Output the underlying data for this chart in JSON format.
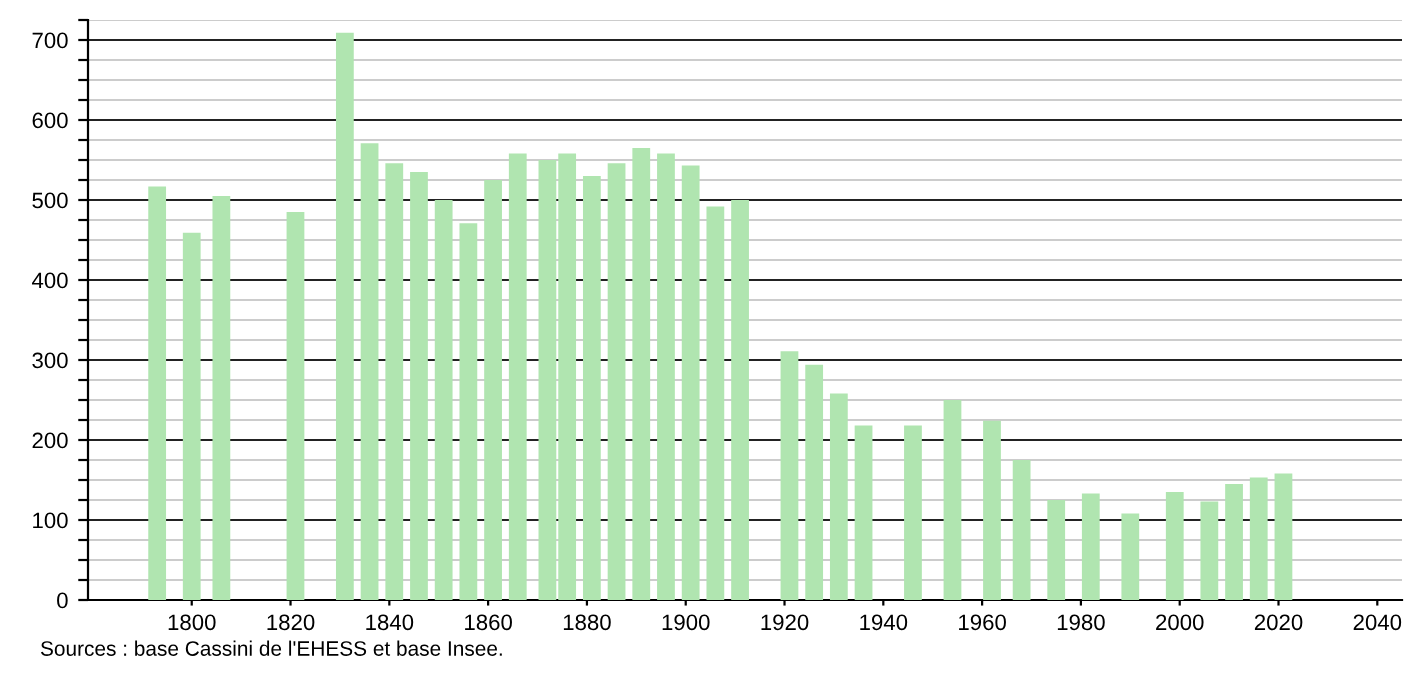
{
  "chart_data": {
    "type": "bar",
    "x": [
      1793,
      1800,
      1806,
      1821,
      1831,
      1836,
      1841,
      1846,
      1851,
      1856,
      1861,
      1866,
      1872,
      1876,
      1881,
      1886,
      1891,
      1896,
      1901,
      1906,
      1911,
      1921,
      1926,
      1931,
      1936,
      1946,
      1954,
      1962,
      1968,
      1975,
      1982,
      1990,
      1999,
      2006,
      2011,
      2016,
      2021
    ],
    "values": [
      517,
      459,
      505,
      485,
      709,
      571,
      546,
      535,
      500,
      471,
      525,
      558,
      550,
      558,
      530,
      546,
      565,
      558,
      543,
      492,
      500,
      311,
      294,
      258,
      218,
      218,
      250,
      224,
      175,
      125,
      133,
      108,
      135,
      123,
      145,
      153,
      158
    ],
    "color": "#b0e5b0",
    "xlim": [
      1779,
      2045
    ],
    "xticks": [
      1800,
      1820,
      1840,
      1860,
      1880,
      1900,
      1920,
      1940,
      1960,
      1980,
      2000,
      2020,
      2040
    ],
    "ylim": [
      0,
      725
    ],
    "yticks": [
      0,
      {
        "value": 25,
        "label": null
      },
      {
        "value": 50,
        "label": null
      },
      {
        "value": 75,
        "label": null
      },
      100,
      {
        "value": 125,
        "label": null
      },
      {
        "value": 150,
        "label": null
      },
      {
        "value": 175,
        "label": null
      },
      200,
      {
        "value": 225,
        "label": null
      },
      {
        "value": 250,
        "label": null
      },
      {
        "value": 275,
        "label": null
      },
      300,
      {
        "value": 325,
        "label": null
      },
      {
        "value": 350,
        "label": null
      },
      {
        "value": 375,
        "label": null
      },
      400,
      {
        "value": 425,
        "label": null
      },
      {
        "value": 450,
        "label": null
      },
      {
        "value": 475,
        "label": null
      },
      500,
      {
        "value": 525,
        "label": null
      },
      {
        "value": 550,
        "label": null
      },
      {
        "value": 575,
        "label": null
      },
      600,
      {
        "value": 625,
        "label": null
      },
      {
        "value": 650,
        "label": null
      },
      {
        "value": 675,
        "label": null
      },
      700,
      {
        "value": 725,
        "label": null
      }
    ],
    "grid": "y",
    "annotations": [
      "Sources : base Cassini de l'EHESS et base Insee."
    ]
  }
}
